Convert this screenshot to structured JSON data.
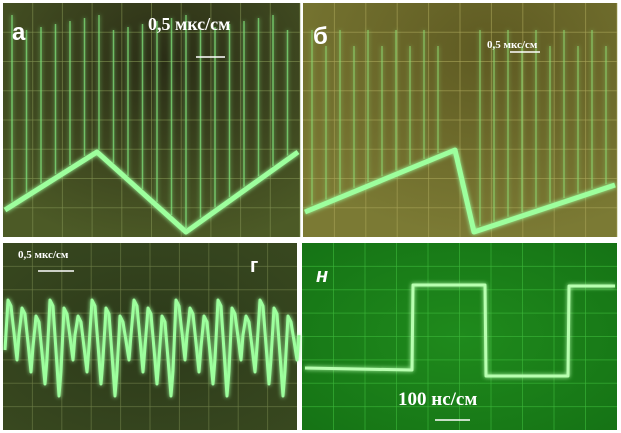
{
  "panels": [
    {
      "label": "а",
      "scale": "0,5 мкс/см"
    },
    {
      "label": "б",
      "scale": "0,5 мкс/см"
    },
    {
      "label": "г",
      "scale": "0,5 мкс/см"
    },
    {
      "label": "н",
      "scale": "100 нс/см"
    }
  ]
}
